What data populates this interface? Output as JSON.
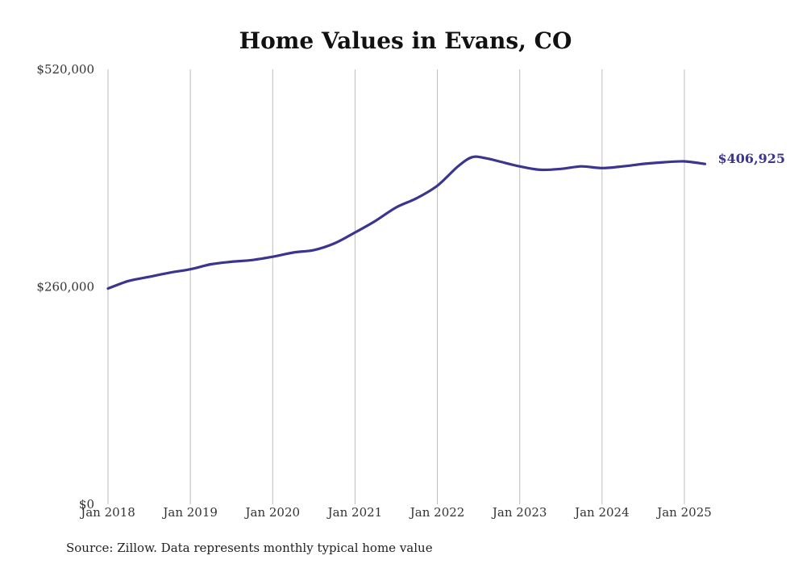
{
  "chart_data": {
    "type": "line",
    "title": "Home Values in Evans, CO",
    "xlabel": "",
    "ylabel": "",
    "ylim": [
      0,
      520000
    ],
    "y_ticks": [
      {
        "value": 0,
        "label": "$0"
      },
      {
        "value": 260000,
        "label": "$260,000"
      },
      {
        "value": 520000,
        "label": "$520,000"
      }
    ],
    "x_range": [
      2018.0,
      2025.25
    ],
    "x_ticks": [
      {
        "value": 2018,
        "label": "Jan 2018"
      },
      {
        "value": 2019,
        "label": "Jan 2019"
      },
      {
        "value": 2020,
        "label": "Jan 2020"
      },
      {
        "value": 2021,
        "label": "Jan 2021"
      },
      {
        "value": 2022,
        "label": "Jan 2022"
      },
      {
        "value": 2023,
        "label": "Jan 2023"
      },
      {
        "value": 2024,
        "label": "Jan 2024"
      },
      {
        "value": 2025,
        "label": "Jan 2025"
      }
    ],
    "grid": "vertical",
    "legend": "none",
    "series": [
      {
        "color": "#3b3591",
        "points": [
          [
            2018.0,
            258000
          ],
          [
            2018.25,
            267000
          ],
          [
            2018.5,
            272000
          ],
          [
            2018.75,
            277000
          ],
          [
            2019.0,
            281000
          ],
          [
            2019.25,
            287000
          ],
          [
            2019.5,
            290000
          ],
          [
            2019.75,
            292000
          ],
          [
            2020.0,
            296000
          ],
          [
            2020.25,
            301000
          ],
          [
            2020.5,
            304000
          ],
          [
            2020.75,
            312000
          ],
          [
            2021.0,
            325000
          ],
          [
            2021.25,
            339000
          ],
          [
            2021.5,
            355000
          ],
          [
            2021.75,
            366000
          ],
          [
            2022.0,
            381000
          ],
          [
            2022.25,
            404000
          ],
          [
            2022.42,
            415000
          ],
          [
            2022.58,
            414000
          ],
          [
            2022.75,
            410000
          ],
          [
            2023.0,
            404000
          ],
          [
            2023.25,
            400000
          ],
          [
            2023.5,
            401000
          ],
          [
            2023.75,
            404000
          ],
          [
            2024.0,
            402000
          ],
          [
            2024.25,
            404000
          ],
          [
            2024.5,
            407000
          ],
          [
            2024.75,
            409000
          ],
          [
            2025.0,
            410000
          ],
          [
            2025.25,
            406925
          ]
        ],
        "end_label": "$406,925"
      }
    ]
  },
  "footer": {
    "source": "Source: Zillow. Data represents monthly typical home value"
  }
}
